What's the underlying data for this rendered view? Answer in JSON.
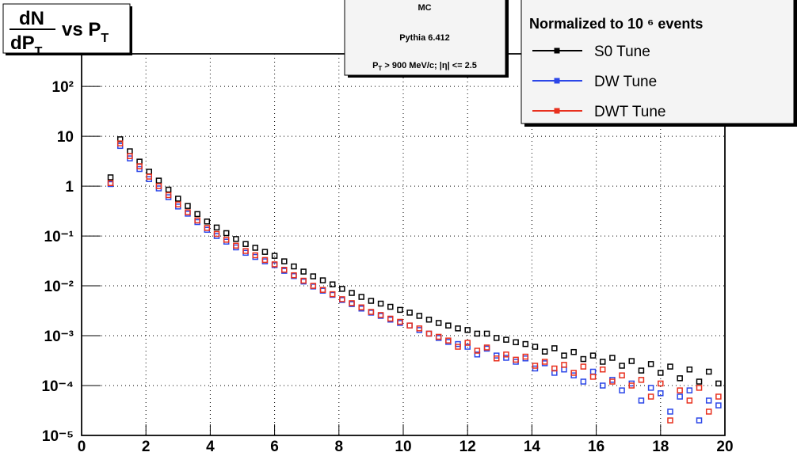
{
  "chart_data": {
    "type": "scatter",
    "title": {
      "numerator": "dN",
      "denominator": "dP",
      "denominator_sub": "T",
      "text": "vs P",
      "text_sub": "T"
    },
    "info": {
      "line1": "MC",
      "line2": "Pythia 6.412",
      "line3_main": "P",
      "line3_sub": "T",
      "line3_rest": " > 900 MeV/c; |η| <= 2.5"
    },
    "legend_title": "Normalized to 10 ⁶ events",
    "log_y": true,
    "grid": true,
    "xlim": [
      0,
      20
    ],
    "xticks": [
      0,
      2,
      4,
      6,
      8,
      10,
      12,
      14,
      16,
      18,
      20
    ],
    "ylim": [
      1e-05,
      450
    ],
    "yticks": [
      {
        "value": 1e-05,
        "label": "10⁻⁵"
      },
      {
        "value": 0.0001,
        "label": "10⁻⁴"
      },
      {
        "value": 0.001,
        "label": "10⁻³"
      },
      {
        "value": 0.01,
        "label": "10⁻²"
      },
      {
        "value": 0.1,
        "label": "10⁻¹"
      },
      1,
      10,
      {
        "value": 100,
        "label": "10²"
      }
    ],
    "x": [
      0.9,
      1.2,
      1.5,
      1.8,
      2.1,
      2.4,
      2.7,
      3.0,
      3.3,
      3.6,
      3.9,
      4.2,
      4.5,
      4.8,
      5.1,
      5.4,
      5.7,
      6.0,
      6.3,
      6.6,
      6.9,
      7.2,
      7.5,
      7.8,
      8.1,
      8.4,
      8.7,
      9.0,
      9.3,
      9.6,
      9.9,
      10.2,
      10.5,
      10.8,
      11.1,
      11.4,
      11.7,
      12.0,
      12.3,
      12.6,
      12.9,
      13.2,
      13.5,
      13.8,
      14.1,
      14.4,
      14.7,
      15.0,
      15.3,
      15.6,
      15.9,
      16.2,
      16.5,
      16.8,
      17.1,
      17.4,
      17.7,
      18.0,
      18.3,
      18.6,
      18.9,
      19.2,
      19.5,
      19.8
    ],
    "series": [
      {
        "name": "S0 Tune",
        "color": "#000000",
        "values": [
          1.5,
          8.7,
          5.0,
          3.1,
          1.95,
          1.29,
          0.85,
          0.56,
          0.4,
          0.275,
          0.195,
          0.148,
          0.114,
          0.087,
          0.069,
          0.058,
          0.048,
          0.04,
          0.031,
          0.0245,
          0.0193,
          0.0155,
          0.0129,
          0.0107,
          0.0087,
          0.0072,
          0.006,
          0.005,
          0.0044,
          0.0038,
          0.0033,
          0.0029,
          0.0025,
          0.0021,
          0.0018,
          0.0016,
          0.0014,
          0.0013,
          0.0011,
          0.0011,
          0.0009,
          0.00083,
          0.00074,
          0.00068,
          0.0006,
          0.00048,
          0.00056,
          0.0004,
          0.00047,
          0.00034,
          0.0004,
          0.0003,
          0.00036,
          0.00025,
          0.00031,
          0.0002,
          0.00027,
          0.00018,
          0.00024,
          0.00014,
          0.00021,
          0.00012,
          0.00019,
          0.00011
        ]
      },
      {
        "name": "DW Tune",
        "color": "#2b46e8",
        "values": [
          1.1,
          6.4,
          3.6,
          2.2,
          1.38,
          0.9,
          0.6,
          0.39,
          0.28,
          0.19,
          0.133,
          0.1,
          0.077,
          0.059,
          0.046,
          0.038,
          0.031,
          0.026,
          0.02,
          0.0157,
          0.0122,
          0.0097,
          0.008,
          0.0066,
          0.0052,
          0.0043,
          0.0035,
          0.0029,
          0.0025,
          0.0021,
          0.0018,
          0.0016,
          0.0013,
          0.0011,
          0.0009,
          0.00075,
          0.00068,
          0.0006,
          0.00042,
          0.00055,
          0.0004,
          0.00036,
          0.0003,
          0.00035,
          0.00022,
          0.00028,
          0.00018,
          0.00021,
          0.00016,
          0.00012,
          0.00019,
          0.0001,
          0.00013,
          8e-05,
          0.00011,
          5e-05,
          9e-05,
          7e-05,
          3e-05,
          6e-05,
          8e-05,
          2e-05,
          5e-05,
          4e-05
        ]
      },
      {
        "name": "DWT Tune",
        "color": "#e8301e",
        "values": [
          1.15,
          7.2,
          4.0,
          2.5,
          1.55,
          1.0,
          0.66,
          0.43,
          0.3,
          0.205,
          0.145,
          0.11,
          0.084,
          0.064,
          0.05,
          0.041,
          0.033,
          0.027,
          0.021,
          0.0163,
          0.0127,
          0.01,
          0.0083,
          0.0068,
          0.0054,
          0.0045,
          0.0037,
          0.003,
          0.0026,
          0.0022,
          0.0019,
          0.0016,
          0.0014,
          0.0011,
          0.00095,
          0.0008,
          0.0006,
          0.00072,
          0.0005,
          0.00058,
          0.00035,
          0.00042,
          0.00033,
          0.00038,
          0.00025,
          0.0003,
          0.00022,
          0.00026,
          0.00018,
          0.00024,
          0.00015,
          0.00021,
          0.00012,
          0.00016,
          0.0001,
          0.00013,
          6e-05,
          0.00011,
          2e-05,
          8e-05,
          5e-05,
          9e-05,
          3e-05,
          6e-05
        ]
      }
    ]
  }
}
